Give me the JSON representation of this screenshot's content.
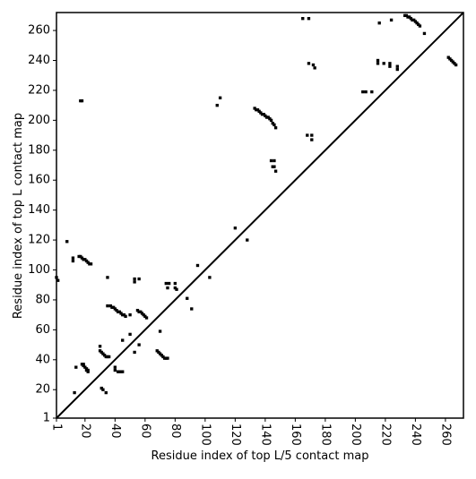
{
  "chart_data": {
    "type": "scatter",
    "marker": "square",
    "color": "#000000",
    "xlabel": "Residue index of top L/5 contact map",
    "ylabel": "Residue index of top L contact map",
    "xlim": [
      1,
      272
    ],
    "ylim": [
      1,
      272
    ],
    "xticks": [
      1,
      20,
      40,
      60,
      80,
      100,
      120,
      140,
      160,
      180,
      200,
      220,
      240,
      260
    ],
    "yticks": [
      1,
      20,
      40,
      60,
      80,
      100,
      120,
      140,
      160,
      180,
      200,
      220,
      240,
      260
    ],
    "x": [
      1,
      2,
      8,
      12,
      12,
      17,
      18,
      16,
      17,
      18,
      19,
      20,
      21,
      22,
      23,
      24,
      35,
      35,
      37,
      38,
      39,
      40,
      41,
      42,
      43,
      44,
      45,
      46,
      47,
      50,
      50,
      53,
      53,
      56,
      55,
      56,
      57,
      58,
      59,
      60,
      61,
      56,
      70,
      74,
      76,
      75,
      80,
      80,
      81,
      88,
      91,
      95,
      103,
      108,
      110,
      120,
      128,
      133,
      134,
      135,
      136,
      137,
      138,
      139,
      140,
      141,
      142,
      143,
      144,
      145,
      146,
      147,
      144,
      146,
      145,
      146,
      147,
      165,
      169,
      169,
      172,
      173,
      168,
      171,
      171,
      233,
      234,
      235,
      236,
      237,
      238,
      239,
      240,
      241,
      242,
      243,
      246,
      216,
      224,
      215,
      215,
      219,
      223,
      223,
      228,
      228,
      205,
      207,
      211,
      262,
      263,
      264,
      265,
      266,
      267,
      13,
      14,
      18,
      19,
      19,
      20,
      21,
      22,
      22,
      21,
      30,
      30,
      31,
      32,
      33,
      34,
      35,
      36,
      31,
      32,
      34,
      40,
      40,
      42,
      43,
      44,
      45,
      45,
      53,
      68,
      69,
      70,
      71,
      72,
      73,
      74,
      75
    ],
    "y": [
      95,
      93,
      119,
      108,
      106,
      213,
      213,
      109,
      109,
      108,
      107,
      107,
      106,
      105,
      104,
      104,
      95,
      76,
      76,
      75,
      75,
      74,
      73,
      72,
      72,
      71,
      70,
      70,
      69,
      70,
      57,
      94,
      92,
      94,
      73,
      72,
      72,
      71,
      70,
      69,
      68,
      50,
      59,
      91,
      91,
      88,
      91,
      88,
      87,
      81,
      74,
      103,
      95,
      210,
      215,
      128,
      120,
      208,
      207,
      207,
      206,
      205,
      204,
      204,
      203,
      202,
      202,
      201,
      200,
      198,
      197,
      195,
      173,
      173,
      169,
      169,
      166,
      268,
      268,
      238,
      237,
      235,
      190,
      190,
      187,
      270,
      270,
      269,
      269,
      268,
      267,
      267,
      266,
      265,
      264,
      263,
      258,
      265,
      267,
      240,
      238,
      238,
      238,
      236,
      236,
      234,
      219,
      219,
      219,
      242,
      241,
      240,
      239,
      238,
      237,
      18,
      35,
      37,
      37,
      36,
      35,
      34,
      33,
      32,
      33,
      49,
      46,
      45,
      44,
      43,
      42,
      42,
      42,
      21,
      20,
      18,
      35,
      33,
      32,
      32,
      32,
      32,
      53,
      45,
      46,
      45,
      44,
      43,
      42,
      41,
      41,
      41
    ]
  }
}
